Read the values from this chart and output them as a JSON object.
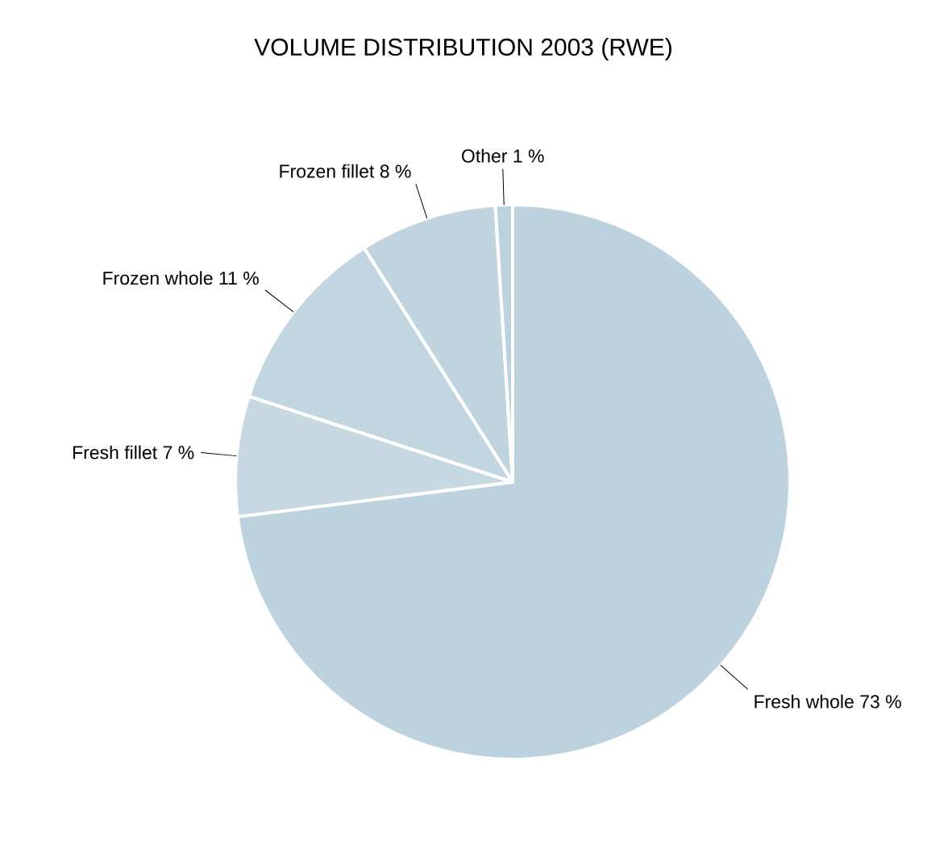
{
  "chart_data": {
    "type": "pie",
    "title": "VOLUME DISTRIBUTION 2003 (RWE)",
    "categories": [
      "Fresh whole",
      "Fresh fillet",
      "Frozen whole",
      "Frozen fillet",
      "Other"
    ],
    "values": [
      73,
      7,
      11,
      8,
      1
    ],
    "value_labels": [
      "73 %",
      "7 %",
      "11 %",
      "8 %",
      "1 %"
    ],
    "colors": [
      "#bcd2de",
      "#c6d9e3",
      "#c2d6e1",
      "#bfd4df",
      "#bcd2de"
    ]
  }
}
